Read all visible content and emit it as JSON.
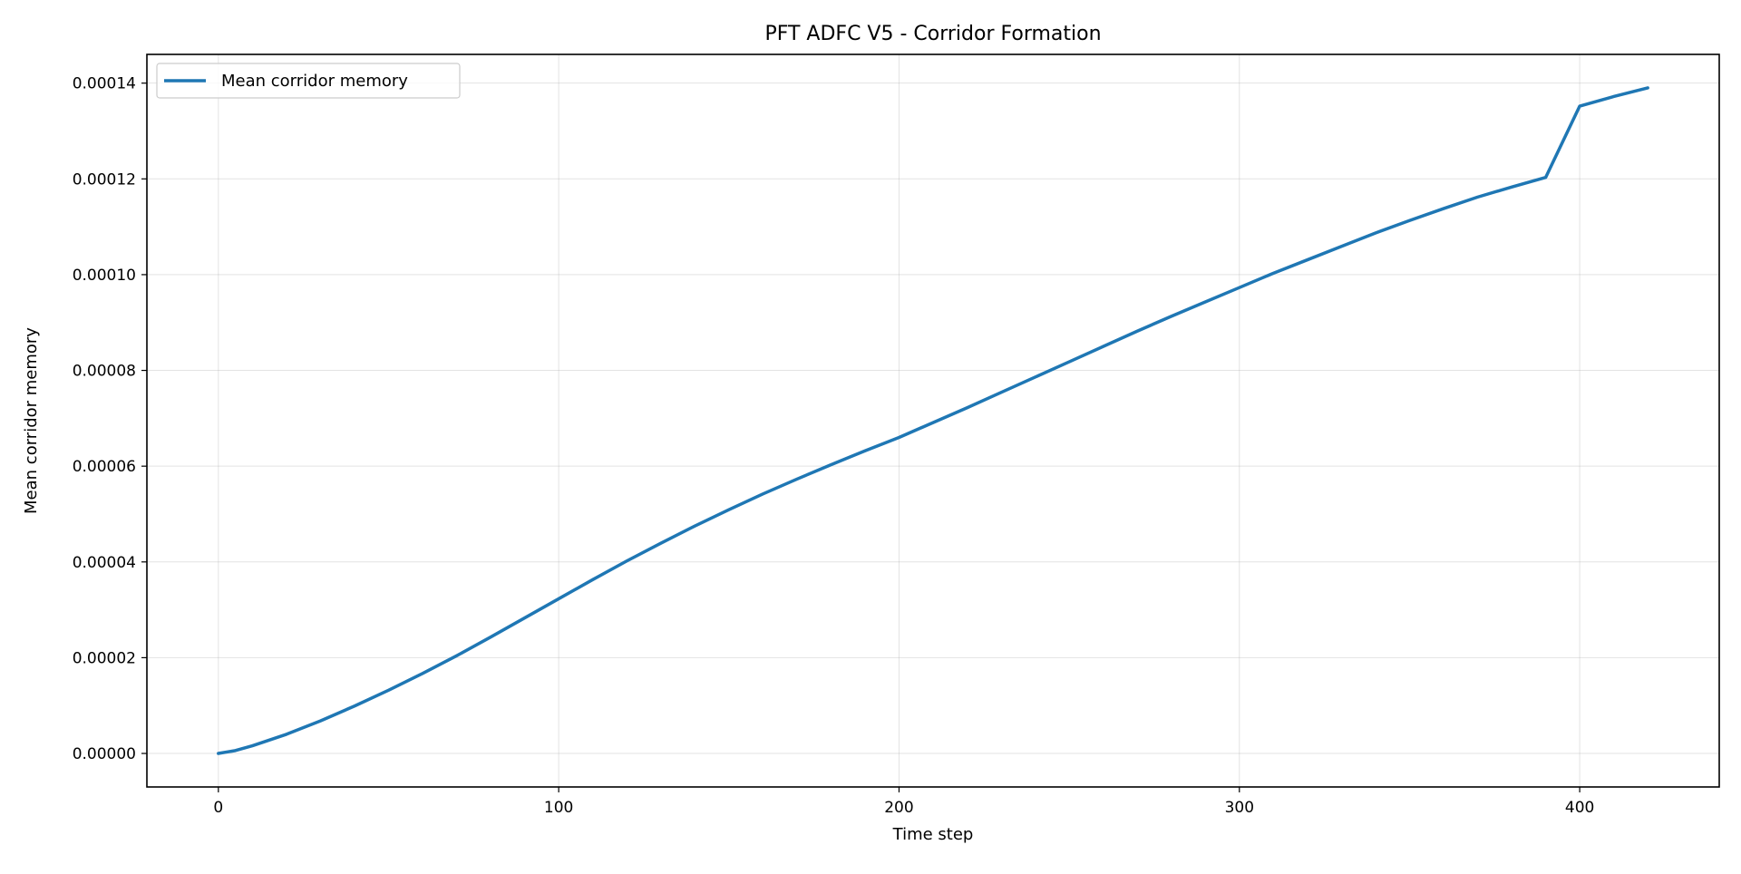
{
  "chart_data": {
    "type": "line",
    "title": "PFT ADFC V5 - Corridor Formation",
    "xlabel": "Time step",
    "ylabel": "Mean corridor memory",
    "xlim": [
      -21,
      441
    ],
    "ylim": [
      -7e-06,
      0.000146
    ],
    "xticks": [
      0,
      100,
      200,
      300,
      400
    ],
    "xtick_labels": [
      "0",
      "100",
      "200",
      "300",
      "400"
    ],
    "yticks": [
      0,
      2e-05,
      4e-05,
      6e-05,
      8e-05,
      0.0001,
      0.00012,
      0.00014
    ],
    "ytick_labels": [
      "0.00000",
      "0.00002",
      "0.00004",
      "0.00006",
      "0.00008",
      "0.00010",
      "0.00012",
      "0.00014"
    ],
    "grid": true,
    "legend": {
      "position": "top-left"
    },
    "series": [
      {
        "name": "Mean corridor memory",
        "color": "#1f77b4",
        "x": [
          0,
          5,
          10,
          20,
          30,
          40,
          50,
          60,
          70,
          80,
          90,
          100,
          110,
          120,
          130,
          140,
          150,
          160,
          170,
          180,
          190,
          200,
          210,
          220,
          230,
          240,
          250,
          260,
          270,
          280,
          290,
          300,
          310,
          320,
          330,
          340,
          350,
          360,
          370,
          380,
          390,
          400,
          410,
          420
        ],
        "y": [
          0,
          6e-07,
          1.6e-06,
          4e-06,
          6.8e-06,
          9.9e-06,
          1.32e-05,
          1.67e-05,
          2.04e-05,
          2.43e-05,
          2.83e-05,
          3.23e-05,
          3.63e-05,
          4.02e-05,
          4.39e-05,
          4.75e-05,
          5.09e-05,
          5.42e-05,
          5.73e-05,
          6.03e-05,
          6.32e-05,
          6.6e-05,
          6.91e-05,
          7.22e-05,
          7.54e-05,
          7.86e-05,
          8.18e-05,
          8.5e-05,
          8.82e-05,
          9.13e-05,
          9.43e-05,
          9.73e-05,
          0.0001003,
          0.0001031,
          0.0001059,
          0.0001087,
          0.0001113,
          0.0001138,
          0.0001162,
          0.0001183,
          0.0001203,
          0.0001352,
          0.0001372,
          0.000139
        ]
      }
    ]
  }
}
